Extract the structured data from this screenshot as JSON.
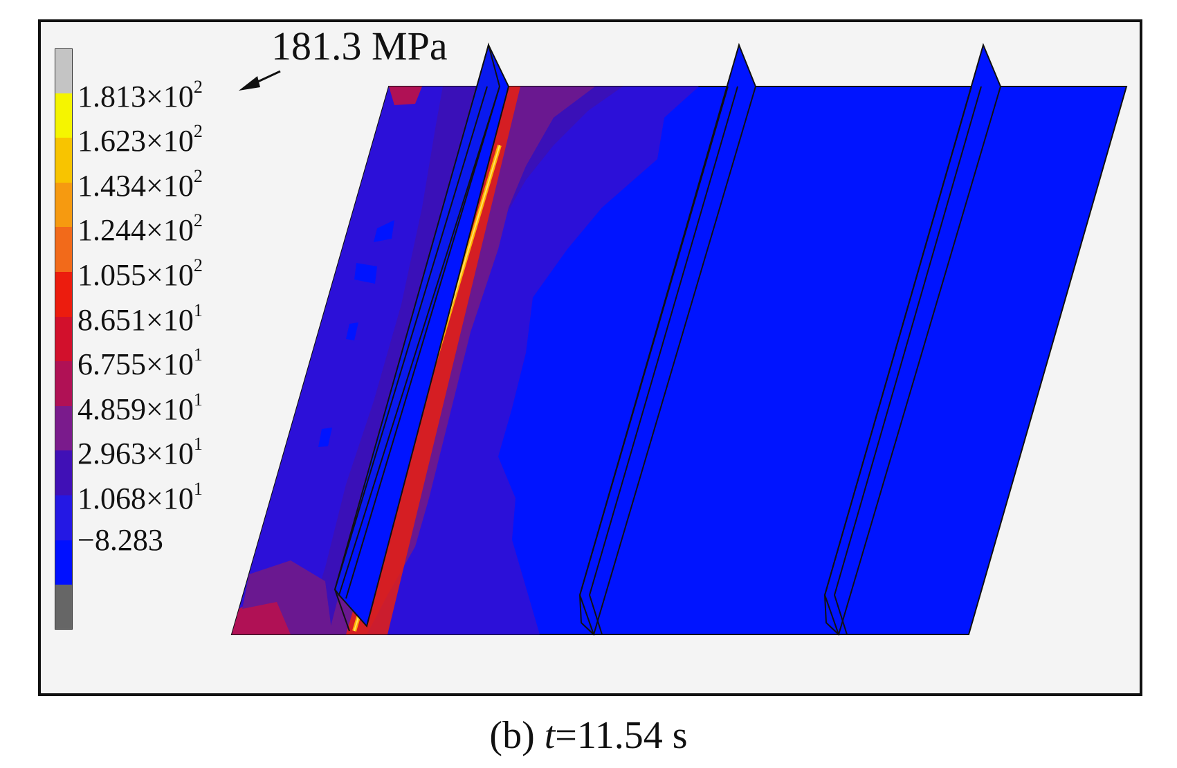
{
  "figure": {
    "peak_label": "181.3 MPa",
    "caption_prefix": "(b) ",
    "caption_var": "t",
    "caption_rest": "=11.54 s"
  },
  "legend": {
    "levels": [
      {
        "mantissa": "1.813",
        "base": "×10",
        "exp": "2",
        "color": "#f5f500"
      },
      {
        "mantissa": "1.623",
        "base": "×10",
        "exp": "2",
        "color": "#f8c400"
      },
      {
        "mantissa": "1.434",
        "base": "×10",
        "exp": "2",
        "color": "#f69a10"
      },
      {
        "mantissa": "1.244",
        "base": "×10",
        "exp": "2",
        "color": "#f26a1a"
      },
      {
        "mantissa": "1.055",
        "base": "×10",
        "exp": "2",
        "color": "#ec1c0e"
      },
      {
        "mantissa": "8.651",
        "base": "×10",
        "exp": "1",
        "color": "#d2102c"
      },
      {
        "mantissa": "6.755",
        "base": "×10",
        "exp": "1",
        "color": "#b01155"
      },
      {
        "mantissa": "4.859",
        "base": "×10",
        "exp": "1",
        "color": "#7a1b8c"
      },
      {
        "mantissa": "2.963",
        "base": "×10",
        "exp": "1",
        "color": "#4010b6"
      },
      {
        "mantissa": "1.068",
        "base": "×10",
        "exp": "1",
        "color": "#2418e4"
      },
      {
        "mantissa": "−8.283",
        "base": "",
        "exp": "",
        "color": "#0010ff"
      }
    ],
    "over_color": "#c4c4c4",
    "under_color": "#666666"
  },
  "colors": {
    "plate_base": "#0014ff",
    "zone_low": "#2c10d8",
    "zone_mid": "#3a10b8",
    "zone_high": "#6a1890",
    "zone_hot": "#b01155",
    "weld_line": "#ffb000",
    "weld_glow": "#e82010"
  }
}
